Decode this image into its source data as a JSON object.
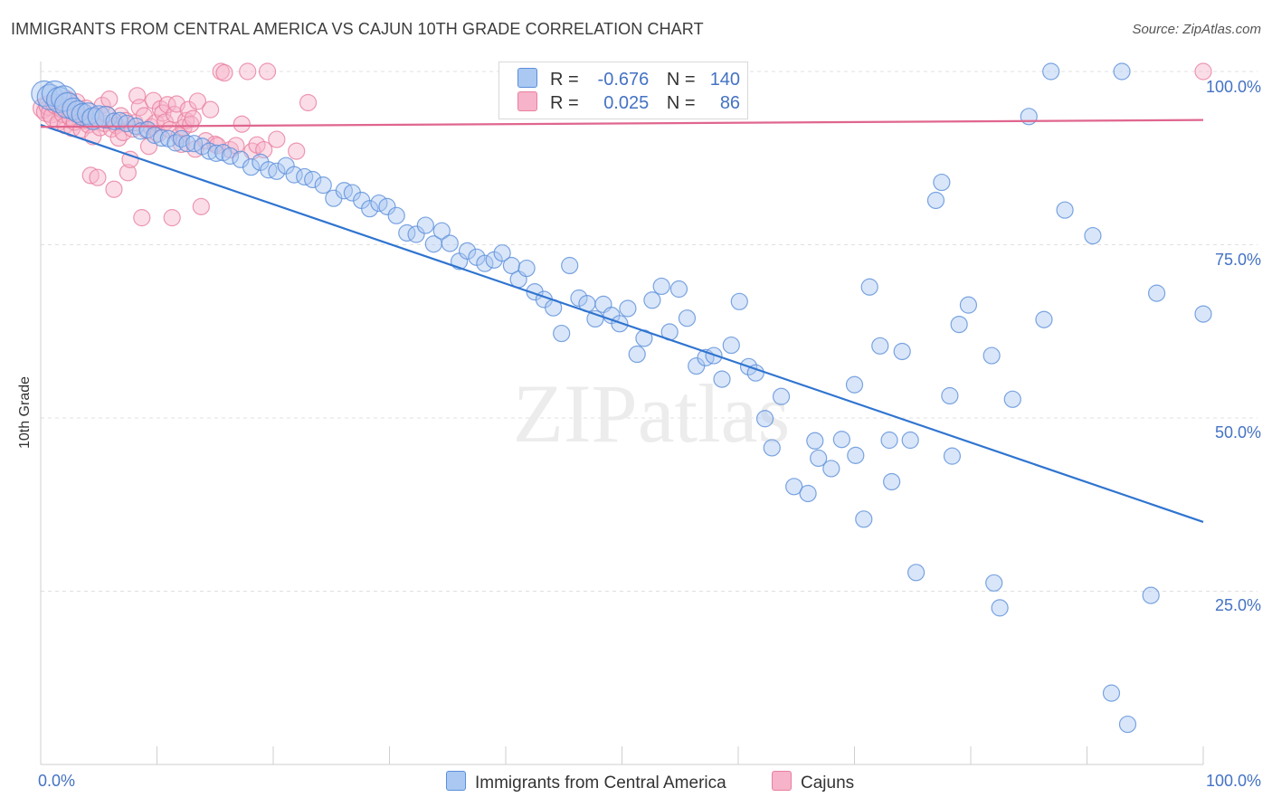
{
  "title": "IMMIGRANTS FROM CENTRAL AMERICA VS CAJUN 10TH GRADE CORRELATION CHART",
  "source": "Source: ZipAtlas.com",
  "watermark": "ZIPatlas",
  "chart_data": {
    "type": "scatter",
    "title": "IMMIGRANTS FROM CENTRAL AMERICA VS CAJUN 10TH GRADE CORRELATION CHART",
    "xlabel": "",
    "ylabel": "10th Grade",
    "xlim": [
      0,
      100
    ],
    "ylim": [
      0,
      100
    ],
    "x_tick_labels": [
      "0.0%",
      "100.0%"
    ],
    "y_tick_labels": [
      "100.0%",
      "75.0%",
      "50.0%",
      "25.0%"
    ],
    "grid": "horizontal dashed",
    "legend": {
      "top": [
        {
          "r_label": "R =",
          "r_value": "-0.676",
          "n_label": "N =",
          "n_value": "140"
        },
        {
          "r_label": "R =",
          "r_value": "0.025",
          "n_label": "N =",
          "n_value": "86"
        }
      ],
      "bottom": [
        "Immigrants from Central America",
        "Cajuns"
      ]
    },
    "series": [
      {
        "name": "Immigrants from Central America",
        "color": "#5b8fd9",
        "fill": "#aac8f2",
        "trend": {
          "x": [
            0,
            100
          ],
          "y": [
            92.3,
            35.0
          ]
        },
        "points": [
          [
            0.3,
            96.8
          ],
          [
            0.8,
            96.3
          ],
          [
            1.2,
            96.8
          ],
          [
            1.6,
            95.9
          ],
          [
            2.0,
            96.1
          ],
          [
            2.3,
            95.1
          ],
          [
            2.8,
            94.6
          ],
          [
            3.2,
            94.2
          ],
          [
            3.6,
            93.8
          ],
          [
            4.1,
            93.9
          ],
          [
            4.5,
            93.2
          ],
          [
            5.0,
            93.5
          ],
          [
            5.6,
            93.4
          ],
          [
            6.3,
            92.8
          ],
          [
            6.8,
            92.9
          ],
          [
            7.4,
            92.5
          ],
          [
            8.2,
            92.1
          ],
          [
            8.6,
            91.4
          ],
          [
            9.2,
            91.6
          ],
          [
            9.8,
            90.8
          ],
          [
            10.4,
            90.4
          ],
          [
            11.0,
            90.3
          ],
          [
            11.6,
            89.7
          ],
          [
            12.1,
            90.3
          ],
          [
            12.6,
            89.6
          ],
          [
            13.2,
            89.6
          ],
          [
            13.9,
            89.2
          ],
          [
            14.5,
            88.5
          ],
          [
            15.1,
            88.2
          ],
          [
            15.7,
            88.3
          ],
          [
            16.3,
            87.8
          ],
          [
            17.2,
            87.3
          ],
          [
            18.1,
            86.2
          ],
          [
            18.9,
            86.9
          ],
          [
            19.6,
            85.8
          ],
          [
            20.3,
            85.6
          ],
          [
            21.1,
            86.4
          ],
          [
            21.8,
            85.1
          ],
          [
            22.7,
            84.8
          ],
          [
            23.4,
            84.4
          ],
          [
            24.3,
            83.6
          ],
          [
            25.2,
            81.7
          ],
          [
            26.1,
            82.8
          ],
          [
            26.8,
            82.5
          ],
          [
            27.6,
            81.4
          ],
          [
            28.3,
            80.2
          ],
          [
            29.1,
            81.0
          ],
          [
            29.8,
            80.5
          ],
          [
            30.6,
            79.2
          ],
          [
            31.5,
            76.7
          ],
          [
            32.3,
            76.5
          ],
          [
            33.1,
            77.8
          ],
          [
            33.8,
            75.1
          ],
          [
            34.5,
            77.0
          ],
          [
            35.2,
            75.2
          ],
          [
            36.0,
            72.6
          ],
          [
            36.7,
            74.1
          ],
          [
            37.5,
            73.2
          ],
          [
            38.2,
            72.3
          ],
          [
            39.0,
            72.8
          ],
          [
            39.7,
            73.8
          ],
          [
            40.5,
            72.0
          ],
          [
            41.1,
            70.0
          ],
          [
            41.8,
            71.6
          ],
          [
            42.5,
            68.2
          ],
          [
            43.3,
            67.1
          ],
          [
            44.1,
            65.9
          ],
          [
            44.8,
            62.2
          ],
          [
            45.5,
            72.0
          ],
          [
            46.3,
            67.3
          ],
          [
            47.0,
            66.5
          ],
          [
            47.7,
            64.3
          ],
          [
            48.4,
            66.4
          ],
          [
            49.1,
            64.8
          ],
          [
            49.8,
            63.6
          ],
          [
            50.5,
            65.8
          ],
          [
            51.3,
            59.2
          ],
          [
            51.9,
            61.5
          ],
          [
            52.6,
            67.0
          ],
          [
            53.4,
            69.0
          ],
          [
            54.1,
            62.4
          ],
          [
            54.9,
            68.6
          ],
          [
            55.6,
            64.4
          ],
          [
            56.4,
            57.5
          ],
          [
            57.2,
            58.7
          ],
          [
            57.9,
            59.0
          ],
          [
            58.6,
            55.6
          ],
          [
            59.4,
            60.5
          ],
          [
            60.1,
            66.8
          ],
          [
            60.9,
            57.4
          ],
          [
            61.5,
            56.5
          ],
          [
            62.3,
            49.9
          ],
          [
            62.9,
            45.7
          ],
          [
            63.7,
            53.1
          ],
          [
            64.8,
            40.1
          ],
          [
            66.0,
            39.1
          ],
          [
            66.6,
            46.7
          ],
          [
            66.9,
            44.2
          ],
          [
            68.0,
            42.7
          ],
          [
            68.9,
            46.9
          ],
          [
            70.0,
            54.8
          ],
          [
            70.1,
            44.6
          ],
          [
            70.8,
            35.4
          ],
          [
            71.3,
            68.9
          ],
          [
            72.2,
            60.4
          ],
          [
            73.0,
            46.8
          ],
          [
            73.2,
            40.8
          ],
          [
            74.1,
            59.6
          ],
          [
            74.8,
            46.8
          ],
          [
            75.3,
            27.7
          ],
          [
            77.0,
            81.4
          ],
          [
            77.5,
            84.0
          ],
          [
            78.2,
            53.2
          ],
          [
            78.4,
            44.5
          ],
          [
            79.0,
            63.5
          ],
          [
            79.8,
            66.3
          ],
          [
            81.8,
            59.0
          ],
          [
            82.0,
            26.2
          ],
          [
            82.5,
            22.6
          ],
          [
            83.6,
            52.7
          ],
          [
            85.0,
            93.5
          ],
          [
            86.3,
            64.2
          ],
          [
            86.9,
            100.0
          ],
          [
            88.1,
            80.0
          ],
          [
            90.5,
            76.3
          ],
          [
            92.1,
            10.3
          ],
          [
            93.0,
            100.0
          ],
          [
            93.5,
            5.8
          ],
          [
            95.5,
            24.4
          ],
          [
            96.0,
            68.0
          ],
          [
            100.0,
            65.0
          ]
        ]
      },
      {
        "name": "Cajuns",
        "color": "#e8809f",
        "fill": "#f6b3c9",
        "trend": {
          "x": [
            0,
            100
          ],
          "y": [
            92.0,
            93.0
          ]
        },
        "points": [
          [
            0.2,
            94.7
          ],
          [
            0.5,
            94.2
          ],
          [
            0.7,
            95.1
          ],
          [
            0.9,
            94.0
          ],
          [
            1.1,
            93.5
          ],
          [
            1.3,
            95.3
          ],
          [
            1.5,
            92.6
          ],
          [
            1.7,
            94.6
          ],
          [
            1.9,
            93.8
          ],
          [
            2.1,
            92.2
          ],
          [
            2.3,
            96.0
          ],
          [
            2.5,
            93.4
          ],
          [
            2.7,
            91.8
          ],
          [
            2.9,
            92.7
          ],
          [
            3.1,
            95.6
          ],
          [
            3.3,
            93.9
          ],
          [
            3.5,
            91.6
          ],
          [
            3.7,
            92.9
          ],
          [
            3.9,
            94.7
          ],
          [
            4.1,
            92.3
          ],
          [
            4.3,
            85.0
          ],
          [
            4.5,
            90.6
          ],
          [
            4.7,
            93.6
          ],
          [
            4.9,
            84.7
          ],
          [
            5.1,
            91.9
          ],
          [
            5.3,
            95.1
          ],
          [
            5.5,
            92.5
          ],
          [
            5.7,
            93.8
          ],
          [
            5.9,
            96.0
          ],
          [
            6.1,
            91.7
          ],
          [
            6.3,
            83.0
          ],
          [
            6.5,
            92.2
          ],
          [
            6.7,
            90.4
          ],
          [
            6.9,
            93.6
          ],
          [
            7.1,
            91.2
          ],
          [
            7.3,
            92.9
          ],
          [
            7.5,
            85.4
          ],
          [
            7.7,
            87.3
          ],
          [
            7.9,
            91.7
          ],
          [
            8.1,
            92.6
          ],
          [
            8.3,
            96.5
          ],
          [
            8.5,
            94.8
          ],
          [
            8.7,
            78.9
          ],
          [
            8.9,
            93.6
          ],
          [
            9.1,
            91.5
          ],
          [
            9.3,
            89.2
          ],
          [
            9.5,
            92.0
          ],
          [
            9.7,
            95.8
          ],
          [
            9.9,
            92.6
          ],
          [
            10.1,
            91.0
          ],
          [
            10.3,
            94.6
          ],
          [
            10.5,
            94.0
          ],
          [
            10.7,
            92.7
          ],
          [
            10.9,
            95.2
          ],
          [
            11.1,
            91.6
          ],
          [
            11.3,
            78.9
          ],
          [
            11.5,
            93.8
          ],
          [
            11.7,
            95.3
          ],
          [
            11.9,
            90.7
          ],
          [
            12.1,
            89.5
          ],
          [
            12.3,
            91.9
          ],
          [
            12.5,
            92.9
          ],
          [
            12.7,
            94.5
          ],
          [
            12.9,
            92.4
          ],
          [
            13.1,
            93.2
          ],
          [
            13.3,
            88.8
          ],
          [
            13.5,
            95.7
          ],
          [
            13.8,
            80.5
          ],
          [
            14.2,
            90.0
          ],
          [
            14.6,
            94.5
          ],
          [
            15.0,
            89.5
          ],
          [
            15.2,
            89.3
          ],
          [
            15.5,
            100.0
          ],
          [
            15.8,
            99.8
          ],
          [
            16.3,
            88.7
          ],
          [
            16.8,
            89.3
          ],
          [
            17.3,
            92.4
          ],
          [
            17.8,
            100.0
          ],
          [
            18.2,
            88.5
          ],
          [
            18.6,
            89.4
          ],
          [
            19.2,
            88.7
          ],
          [
            19.5,
            100.0
          ],
          [
            20.3,
            90.2
          ],
          [
            22.0,
            88.5
          ],
          [
            23.0,
            95.5
          ],
          [
            100.0,
            100.0
          ]
        ]
      }
    ]
  }
}
